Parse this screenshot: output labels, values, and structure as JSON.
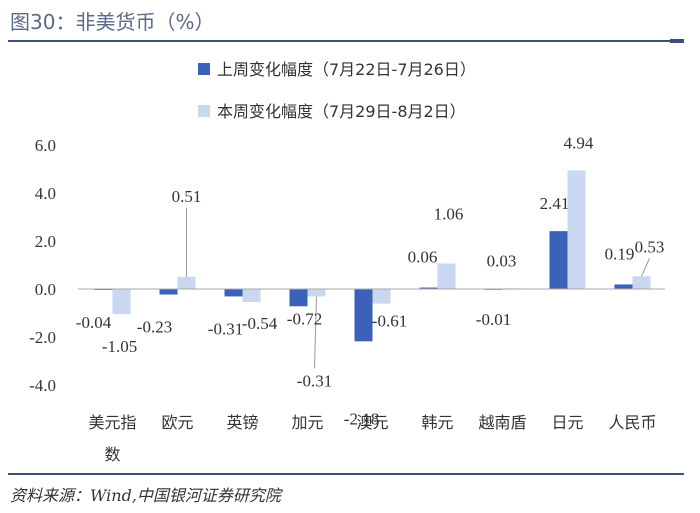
{
  "header": {
    "title": "图30：非美货币（%）"
  },
  "footer": {
    "source": "资料来源：Wind,中国银河证券研究院"
  },
  "colors": {
    "series1": "#3a62b8",
    "series2": "#c9d7f0",
    "rule": "#3a4f7a"
  },
  "chart_data": {
    "type": "bar",
    "title": "非美货币（%）",
    "categories": [
      "美元指数",
      "欧元",
      "英镑",
      "加元",
      "澳元",
      "韩元",
      "越南盾",
      "日元",
      "人民币"
    ],
    "series": [
      {
        "name": "上周变化幅度（7月22日-7月26日）",
        "values": [
          -0.04,
          -0.23,
          -0.31,
          -0.72,
          -2.18,
          0.06,
          -0.01,
          2.41,
          0.19
        ]
      },
      {
        "name": "本周变化幅度（7月29日-8月2日）",
        "values": [
          -1.05,
          0.51,
          -0.54,
          -0.31,
          -0.61,
          1.06,
          0.03,
          4.94,
          0.53
        ]
      }
    ],
    "ylim": [
      -4.0,
      6.0
    ],
    "yticks": [
      "6.0",
      "4.0",
      "2.0",
      "0.0",
      "-2.0",
      "-4.0"
    ],
    "legend_position": "top-center",
    "grid": false
  }
}
